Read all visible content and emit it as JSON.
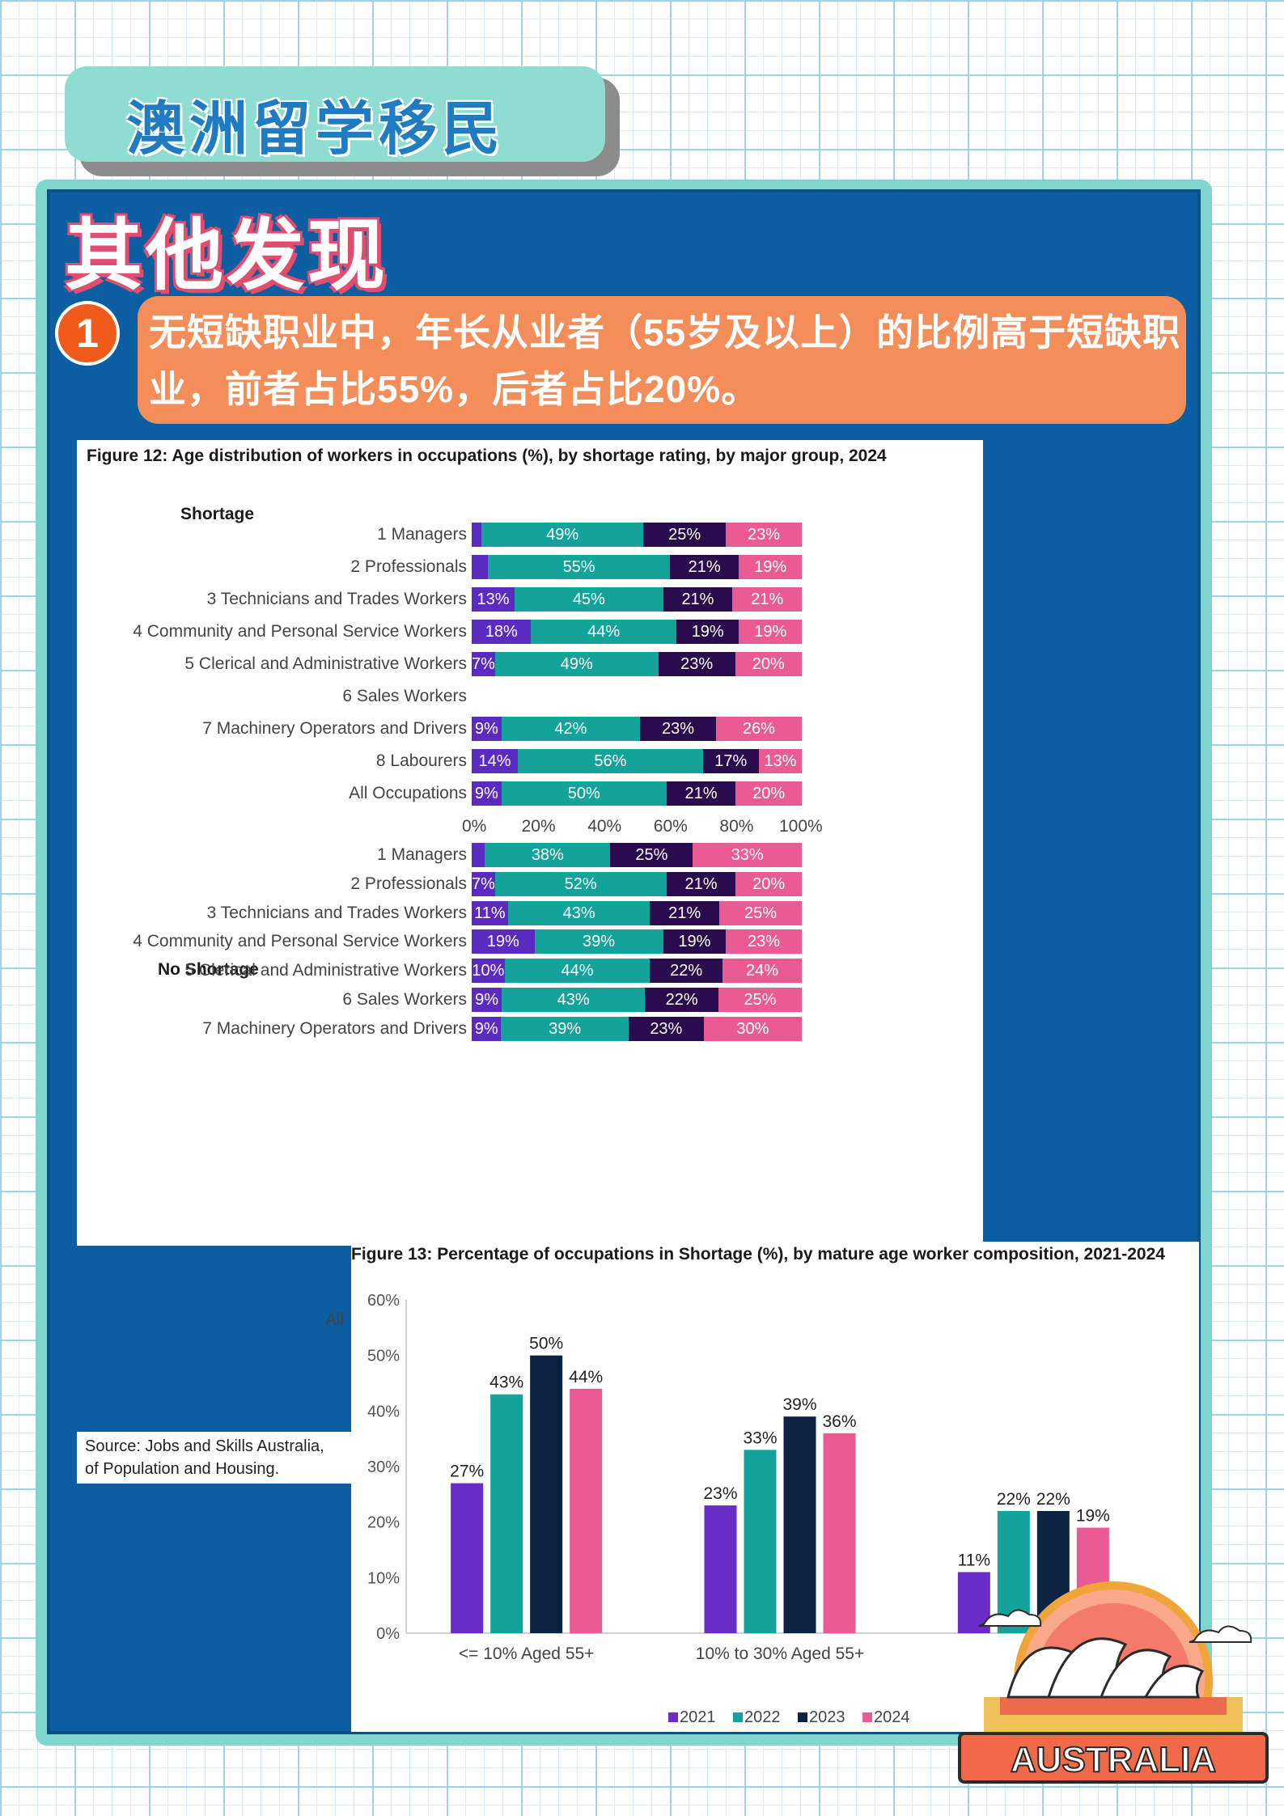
{
  "header": {
    "title": "澳洲留学移民"
  },
  "heading": "其他发现",
  "point": {
    "number": "1",
    "text": "无短缺职业中，年长从业者（55岁及以上）的比例高于短缺职业，前者占比55%，后者占比20%。"
  },
  "figure12": {
    "title": "Figure 12: Age distribution of workers in occupations (%), by shortage rating, by major group, 2024",
    "colors": [
      "#5b2bc1",
      "#13a39a",
      "#2a0c4e",
      "#ea5a93"
    ],
    "axis_ticks": [
      "0%",
      "20%",
      "40%",
      "60%",
      "80%",
      "100%"
    ],
    "shortage": {
      "label": "Shortage",
      "rows": [
        {
          "label": "1 Managers",
          "values": [
            3,
            49,
            25,
            23
          ],
          "texts": [
            "",
            "49%",
            "25%",
            "23%"
          ]
        },
        {
          "label": "2 Professionals",
          "values": [
            5,
            55,
            21,
            19
          ],
          "texts": [
            "",
            "55%",
            "21%",
            "19%"
          ]
        },
        {
          "label": "3 Technicians and Trades Workers",
          "values": [
            13,
            45,
            21,
            21
          ],
          "texts": [
            "13%",
            "45%",
            "21%",
            "21%"
          ]
        },
        {
          "label": "4 Community and Personal Service Workers",
          "values": [
            18,
            44,
            19,
            19
          ],
          "texts": [
            "18%",
            "44%",
            "19%",
            "19%"
          ]
        },
        {
          "label": "5 Clerical and Administrative Workers",
          "values": [
            7,
            49,
            23,
            20
          ],
          "texts": [
            "7%",
            "49%",
            "23%",
            "20%"
          ]
        },
        {
          "label": "6 Sales Workers",
          "values": [],
          "texts": []
        },
        {
          "label": "7 Machinery Operators and Drivers",
          "values": [
            9,
            42,
            23,
            26
          ],
          "texts": [
            "9%",
            "42%",
            "23%",
            "26%"
          ]
        },
        {
          "label": "8 Labourers",
          "values": [
            14,
            56,
            17,
            13
          ],
          "texts": [
            "14%",
            "56%",
            "17%",
            "13%"
          ]
        },
        {
          "label": "All Occupations",
          "values": [
            9,
            50,
            21,
            20
          ],
          "texts": [
            "9%",
            "50%",
            "21%",
            "20%"
          ]
        }
      ]
    },
    "no_shortage": {
      "label": "No Shortage",
      "rows": [
        {
          "label": "1 Managers",
          "values": [
            4,
            38,
            25,
            33
          ],
          "texts": [
            "",
            "38%",
            "25%",
            "33%"
          ]
        },
        {
          "label": "2 Professionals",
          "values": [
            7,
            52,
            21,
            20
          ],
          "texts": [
            "7%",
            "52%",
            "21%",
            "20%"
          ]
        },
        {
          "label": "3 Technicians and Trades Workers",
          "values": [
            11,
            43,
            21,
            25
          ],
          "texts": [
            "11%",
            "43%",
            "21%",
            "25%"
          ]
        },
        {
          "label": "4 Community and Personal Service Workers",
          "values": [
            19,
            39,
            19,
            23
          ],
          "texts": [
            "19%",
            "39%",
            "19%",
            "23%"
          ]
        },
        {
          "label": "5 Clerical and Administrative Workers",
          "values": [
            10,
            44,
            22,
            24
          ],
          "texts": [
            "10%",
            "44%",
            "22%",
            "24%"
          ]
        },
        {
          "label": "6 Sales Workers",
          "values": [
            9,
            43,
            22,
            25
          ],
          "texts": [
            "9%",
            "43%",
            "22%",
            "25%"
          ]
        },
        {
          "label": "7 Machinery Operators and Drivers",
          "values": [
            9,
            39,
            23,
            30
          ],
          "texts": [
            "9%",
            "39%",
            "23%",
            "30%"
          ]
        }
      ]
    },
    "all_label": "All",
    "source": "Source: Jobs and Skills Australia, ... of Population and Housing.",
    "source_lines": [
      "Source: Jobs and Skills Australia,",
      "of Population and Housing."
    ]
  },
  "chart_data": {
    "type": "bar",
    "title": "Figure 13: Percentage of occupations in Shortage (%), by mature age worker composition, 2021-2024",
    "categories": [
      "<= 10% Aged 55+",
      "10% to 30% Aged 55+",
      ""
    ],
    "series": [
      {
        "name": "2021",
        "color": "#6a2cc6",
        "values": [
          27,
          23,
          11
        ]
      },
      {
        "name": "2022",
        "color": "#13a39a",
        "values": [
          43,
          33,
          22
        ]
      },
      {
        "name": "2023",
        "color": "#0b2340",
        "values": [
          50,
          39,
          22
        ]
      },
      {
        "name": "2024",
        "color": "#ea5a93",
        "values": [
          44,
          36,
          19
        ]
      }
    ],
    "ylim": [
      0,
      60
    ],
    "yticks": [
      "0%",
      "10%",
      "20%",
      "30%",
      "40%",
      "50%",
      "60%"
    ],
    "legend": "bottom"
  },
  "badge": {
    "text": "AUSTRALIA"
  }
}
